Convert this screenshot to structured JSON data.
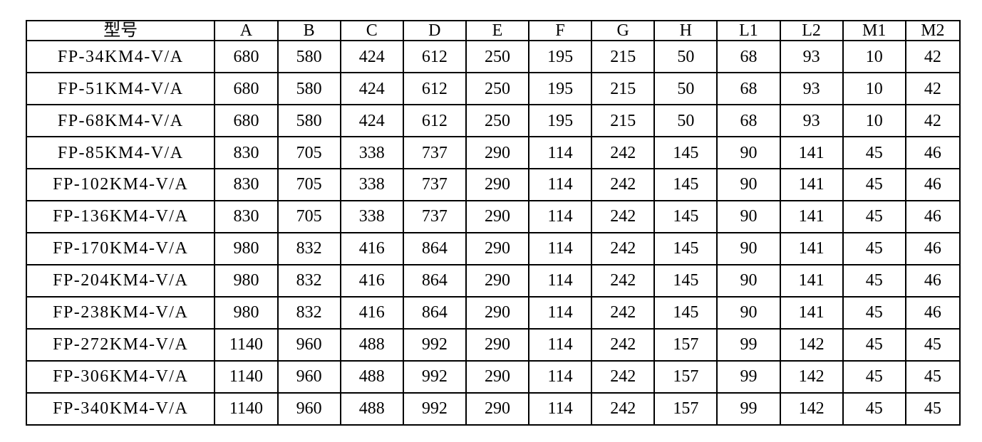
{
  "table": {
    "columns": [
      "型号",
      "A",
      "B",
      "C",
      "D",
      "E",
      "F",
      "G",
      "H",
      "L1",
      "L2",
      "M1",
      "M2"
    ],
    "rows": [
      [
        "FP-34KM4-V/A",
        "680",
        "580",
        "424",
        "612",
        "250",
        "195",
        "215",
        "50",
        "68",
        "93",
        "10",
        "42"
      ],
      [
        "FP-51KM4-V/A",
        "680",
        "580",
        "424",
        "612",
        "250",
        "195",
        "215",
        "50",
        "68",
        "93",
        "10",
        "42"
      ],
      [
        "FP-68KM4-V/A",
        "680",
        "580",
        "424",
        "612",
        "250",
        "195",
        "215",
        "50",
        "68",
        "93",
        "10",
        "42"
      ],
      [
        "FP-85KM4-V/A",
        "830",
        "705",
        "338",
        "737",
        "290",
        "114",
        "242",
        "145",
        "90",
        "141",
        "45",
        "46"
      ],
      [
        "FP-102KM4-V/A",
        "830",
        "705",
        "338",
        "737",
        "290",
        "114",
        "242",
        "145",
        "90",
        "141",
        "45",
        "46"
      ],
      [
        "FP-136KM4-V/A",
        "830",
        "705",
        "338",
        "737",
        "290",
        "114",
        "242",
        "145",
        "90",
        "141",
        "45",
        "46"
      ],
      [
        "FP-170KM4-V/A",
        "980",
        "832",
        "416",
        "864",
        "290",
        "114",
        "242",
        "145",
        "90",
        "141",
        "45",
        "46"
      ],
      [
        "FP-204KM4-V/A",
        "980",
        "832",
        "416",
        "864",
        "290",
        "114",
        "242",
        "145",
        "90",
        "141",
        "45",
        "46"
      ],
      [
        "FP-238KM4-V/A",
        "980",
        "832",
        "416",
        "864",
        "290",
        "114",
        "242",
        "145",
        "90",
        "141",
        "45",
        "46"
      ],
      [
        "FP-272KM4-V/A",
        "1140",
        "960",
        "488",
        "992",
        "290",
        "114",
        "242",
        "157",
        "99",
        "142",
        "45",
        "45"
      ],
      [
        "FP-306KM4-V/A",
        "1140",
        "960",
        "488",
        "992",
        "290",
        "114",
        "242",
        "157",
        "99",
        "142",
        "45",
        "45"
      ],
      [
        "FP-340KM4-V/A",
        "1140",
        "960",
        "488",
        "992",
        "290",
        "114",
        "242",
        "157",
        "99",
        "142",
        "45",
        "45"
      ]
    ]
  }
}
